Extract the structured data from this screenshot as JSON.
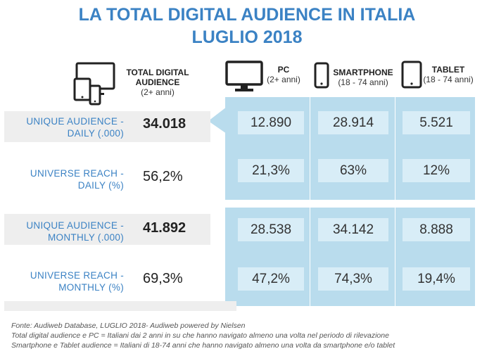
{
  "title": {
    "line1": "LA TOTAL DIGITAL AUDIENCE IN ITALIA",
    "line2": "LUGLIO 2018"
  },
  "colors": {
    "title": "#3b82c4",
    "panel": "#b9dced",
    "cell": "#d8edf7",
    "row_gray": "#eeeeee"
  },
  "header": {
    "total": {
      "line1": "TOTAL DIGITAL",
      "line2": "AUDIENCE",
      "sub": "(2+ anni)",
      "icon": "multi-device-icon"
    },
    "pc": {
      "label": "PC",
      "sub": "(2+ anni)",
      "icon": "monitor-icon"
    },
    "smartphone": {
      "label": "SMARTPHONE",
      "sub": "(18 - 74 anni)",
      "icon": "smartphone-icon"
    },
    "tablet": {
      "label": "TABLET",
      "sub": "(18 - 74 anni)",
      "icon": "tablet-icon"
    }
  },
  "rows": [
    {
      "label1": "UNIQUE AUDIENCE  -",
      "label2": "DAILY (.000)",
      "total": "34.018",
      "pc": "12.890",
      "smartphone": "28.914",
      "tablet": "5.521"
    },
    {
      "label1": "UNIVERSE REACH -",
      "label2": "DAILY (%)",
      "total": "56,2%",
      "pc": "21,3%",
      "smartphone": "63%",
      "tablet": "12%"
    },
    {
      "label1": "UNIQUE AUDIENCE  -",
      "label2": "MONTHLY (.000)",
      "total": "41.892",
      "pc": "28.538",
      "smartphone": "34.142",
      "tablet": "8.888"
    },
    {
      "label1": "UNIVERSE REACH -",
      "label2": "MONTHLY (%)",
      "total": "69,3%",
      "pc": "47,2%",
      "smartphone": "74,3%",
      "tablet": "19,4%"
    }
  ],
  "footer": {
    "line1": "Fonte: Audiweb Database, LUGLIO 2018- Audiweb powered by Nielsen",
    "line2": "Total digital audience e PC = Italiani dai 2 anni in su che hanno navigato almeno una volta nel periodo di rilevazione",
    "line3": "Smartphone e Tablet audience = Italiani di 18-74 anni che hanno navigato almeno una volta da smartphone e/o tablet"
  }
}
